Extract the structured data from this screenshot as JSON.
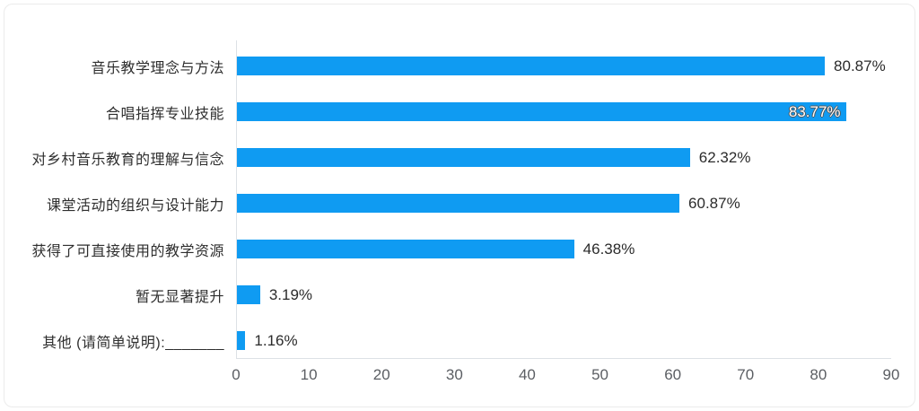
{
  "chart_data": {
    "type": "bar",
    "orientation": "horizontal",
    "title": "",
    "xlabel": "",
    "ylabel": "",
    "grid": false,
    "legend": false,
    "xlim": [
      0,
      90
    ],
    "x_ticks": [
      0,
      10,
      20,
      30,
      40,
      50,
      60,
      70,
      80,
      90
    ],
    "categories": [
      "音乐教学理念与方法",
      "合唱指挥专业技能",
      "对乡村音乐教育的理解与信念",
      "课堂活动的组织与设计能力",
      "获得了可直接使用的教学资源",
      "暂无显著提升",
      "其他 (请简单说明):_______"
    ],
    "values": [
      80.87,
      83.77,
      62.32,
      60.87,
      46.38,
      3.19,
      1.16
    ],
    "value_labels": [
      "80.87%",
      "83.77%",
      "62.32%",
      "60.87%",
      "46.38%",
      "3.19%",
      "1.16%"
    ]
  },
  "colors": {
    "bar": "#0f9bf2",
    "category_text": "#2e2e2e",
    "value_text": "#2b2b2b",
    "value_text_inside": "#ffffff",
    "axis_text": "#5b5e63",
    "axis_line": "#dde1e6",
    "frame_border": "#ebebeb",
    "background": "#ffffff"
  }
}
